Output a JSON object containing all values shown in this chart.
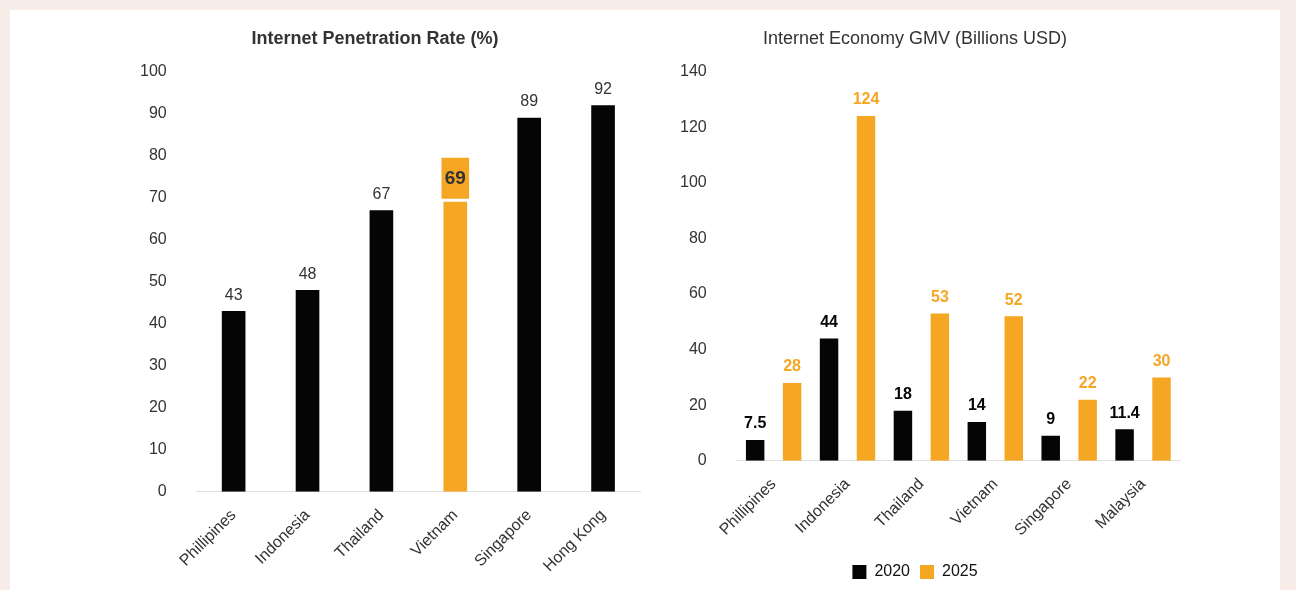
{
  "chart_data": [
    {
      "type": "bar",
      "title": "Internet Penetration Rate (%)",
      "categories": [
        "Phillipines",
        "Indonesia",
        "Thailand",
        "Vietnam",
        "Singapore",
        "Hong Kong"
      ],
      "values": [
        43,
        48,
        67,
        69,
        89,
        92
      ],
      "colors": [
        "#050505",
        "#050505",
        "#050505",
        "#f5a623",
        "#050505",
        "#050505"
      ],
      "ylim": [
        0,
        100
      ],
      "yticks": [
        0,
        10,
        20,
        30,
        40,
        50,
        60,
        70,
        80,
        90,
        100
      ],
      "grid": false,
      "legend": false,
      "data_labels": true
    },
    {
      "type": "bar",
      "title": "Internet Economy GMV (Billions USD)",
      "categories": [
        "Phillipines",
        "Indonesia",
        "Thailand",
        "Vietnam",
        "Singapore",
        "Malaysia"
      ],
      "series": [
        {
          "name": "2020",
          "color": "#050505",
          "values": [
            7.5,
            44,
            18,
            14,
            9,
            11.4
          ]
        },
        {
          "name": "2025",
          "color": "#f5a623",
          "values": [
            28,
            124,
            53,
            52,
            22,
            30
          ]
        }
      ],
      "ylim": [
        0,
        140
      ],
      "yticks": [
        0,
        20,
        40,
        60,
        80,
        100,
        120,
        140
      ],
      "grid": false,
      "legend": "bottom",
      "data_labels": true
    }
  ]
}
